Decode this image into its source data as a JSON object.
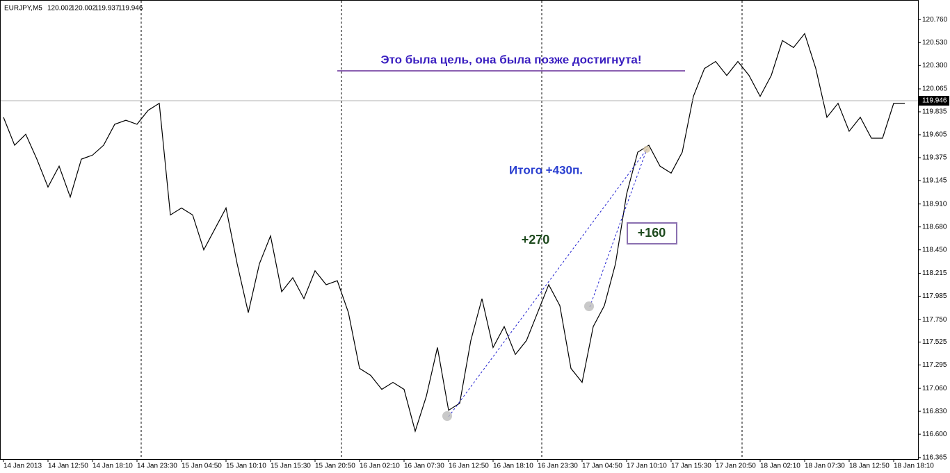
{
  "chart_data": {
    "type": "line",
    "title": "EURJPY,M5",
    "ohlc": [
      120.002,
      120.002,
      119.937,
      119.946
    ],
    "color": "#000000",
    "categories": [
      "14 Jan 2013",
      null,
      null,
      null,
      "14 Jan 12:50",
      null,
      null,
      null,
      "14 Jan 18:10",
      null,
      null,
      null,
      "14 Jan 23:30",
      null,
      null,
      null,
      "15 Jan 04:50",
      null,
      null,
      null,
      "15 Jan 10:10",
      null,
      null,
      null,
      "15 Jan 15:30",
      null,
      null,
      null,
      "15 Jan 20:50",
      null,
      null,
      null,
      "16 Jan 02:10",
      null,
      null,
      null,
      "16 Jan 07:30",
      null,
      null,
      null,
      "16 Jan 12:50",
      null,
      null,
      null,
      "16 Jan 18:10",
      null,
      null,
      null,
      "16 Jan 23:30",
      null,
      null,
      null,
      "17 Jan 04:50",
      null,
      null,
      null,
      "17 Jan 10:10",
      null,
      null,
      null,
      "17 Jan 15:30",
      null,
      null,
      null,
      "17 Jan 20:50",
      null,
      null,
      null,
      "18 Jan 02:10",
      null,
      null,
      null,
      "18 Jan 07:30",
      null,
      null,
      null,
      "18 Jan 12:50",
      null,
      null,
      null,
      "18 Jan 18:10",
      null
    ],
    "values": [
      119.78,
      119.5,
      119.61,
      119.36,
      119.08,
      119.29,
      118.98,
      119.36,
      119.4,
      119.5,
      119.71,
      119.75,
      119.71,
      119.85,
      119.92,
      118.8,
      118.87,
      118.8,
      118.45,
      118.66,
      118.87,
      118.31,
      117.82,
      118.31,
      118.59,
      118.03,
      118.17,
      117.96,
      118.24,
      118.1,
      118.14,
      117.82,
      117.26,
      117.19,
      117.05,
      117.12,
      117.05,
      116.63,
      116.98,
      117.47,
      116.84,
      116.91,
      117.54,
      117.96,
      117.47,
      117.68,
      117.4,
      117.54,
      117.82,
      118.1,
      117.89,
      117.26,
      117.12,
      117.68,
      117.89,
      118.31,
      119.01,
      119.43,
      119.5,
      119.29,
      119.22,
      119.43,
      119.99,
      120.27,
      120.34,
      120.2,
      120.34,
      120.2,
      119.99,
      120.2,
      120.55,
      120.48,
      120.62,
      120.27,
      119.78,
      119.92,
      119.64,
      119.78,
      119.57,
      119.57,
      119.92,
      119.92
    ],
    "current_price": 119.946,
    "ylim": [
      116.35,
      120.95
    ],
    "yticks": [
      {
        "value": 120.76,
        "label": "120.760"
      },
      {
        "value": 120.53,
        "label": "120.530"
      },
      {
        "value": 120.3,
        "label": "120.300"
      },
      120.065,
      119.835,
      119.605,
      119.375,
      119.145,
      {
        "value": 118.91,
        "label": "118.910"
      },
      {
        "value": 118.68,
        "label": "118.680"
      },
      {
        "value": 118.45,
        "label": "118.450"
      },
      118.215,
      117.985,
      {
        "value": 117.75,
        "label": "117.750"
      },
      117.525,
      117.295,
      {
        "value": 117.06,
        "label": "117.060"
      },
      {
        "value": 116.83,
        "label": "116.830"
      },
      {
        "value": 116.6,
        "label": "116.600"
      },
      116.365
    ],
    "annotations": [
      "Это была цель, она была позже достигнута!",
      "Итого +430п.",
      "+270",
      "+160"
    ]
  }
}
